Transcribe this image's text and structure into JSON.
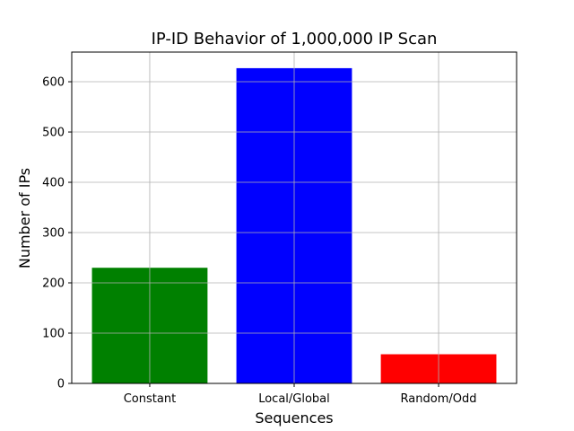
{
  "chart_data": {
    "type": "bar",
    "title": "IP-ID Behavior of 1,000,000 IP Scan",
    "xlabel": "Sequences",
    "ylabel": "Number of IPs",
    "categories": [
      "Constant",
      "Local/Global",
      "Random/Odd"
    ],
    "values": [
      230,
      627,
      58
    ],
    "colors": [
      "#008000",
      "#0000ff",
      "#ff0000"
    ],
    "ylim": [
      0,
      659
    ],
    "yticks": [
      0,
      100,
      200,
      300,
      400,
      500,
      600
    ],
    "grid": true
  }
}
